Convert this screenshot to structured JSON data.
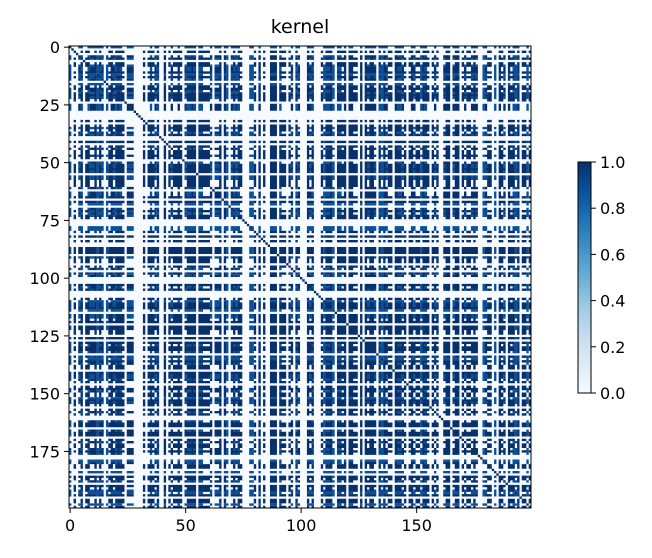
{
  "chart_data": {
    "type": "heatmap",
    "title": "kernel",
    "xlabel": "",
    "ylabel": "",
    "rows": 200,
    "cols": 200,
    "x_ticks": [
      0,
      50,
      100,
      150
    ],
    "y_ticks": [
      0,
      25,
      50,
      75,
      100,
      125,
      150,
      175
    ],
    "value_range": [
      0,
      1
    ],
    "colormap": "Blues",
    "colorbar": {
      "ticks": [
        "0.0",
        "0.2",
        "0.4",
        "0.6",
        "0.8",
        "1.0"
      ],
      "tick_values": [
        0.0,
        0.2,
        0.4,
        0.6,
        0.8,
        1.0
      ],
      "placement": "right"
    },
    "diagonal_value": 1.0,
    "pattern": "near-binary block structure (values ~0 or ~1), strong diagonal",
    "colors": {
      "low": "#f7fbff",
      "high": "#08306b",
      "typical_high": "#08519c"
    }
  }
}
